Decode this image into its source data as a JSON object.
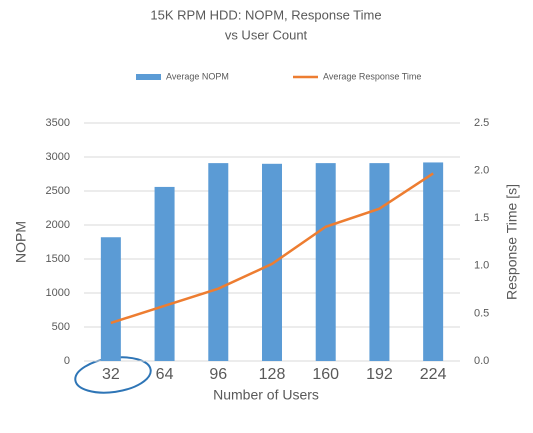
{
  "chart_data": {
    "type": "bar",
    "title": "15K RPM HDD: NOPM, Response Time",
    "subtitle": "vs User Count",
    "categories": [
      "32",
      "64",
      "96",
      "128",
      "160",
      "192",
      "224"
    ],
    "series": [
      {
        "name": "Average NOPM",
        "type": "bar",
        "color": "#5b9bd5",
        "values": [
          1820,
          2560,
          2910,
          2900,
          2910,
          2910,
          2920
        ]
      },
      {
        "name": "Average Response Time",
        "type": "line",
        "axis": "y2",
        "color": "#ed7d31",
        "values": [
          0.4,
          0.58,
          0.76,
          1.02,
          1.41,
          1.6,
          1.97
        ]
      }
    ],
    "x_label": "Number of Users",
    "y_label": "NOPM",
    "y2_label": "Response Time [s]",
    "ylim": [
      0,
      3500
    ],
    "yticks": [
      0,
      500,
      1000,
      1500,
      2000,
      2500,
      3000,
      3500
    ],
    "y2lim": [
      0,
      2.5
    ],
    "y2ticks": [
      {
        "value": 0,
        "label": "0.0"
      },
      0.5,
      {
        "value": 1,
        "label": "1.0"
      },
      1.5,
      {
        "value": 2,
        "label": "2.0"
      },
      2.5
    ],
    "grid": true,
    "legend": "top"
  }
}
